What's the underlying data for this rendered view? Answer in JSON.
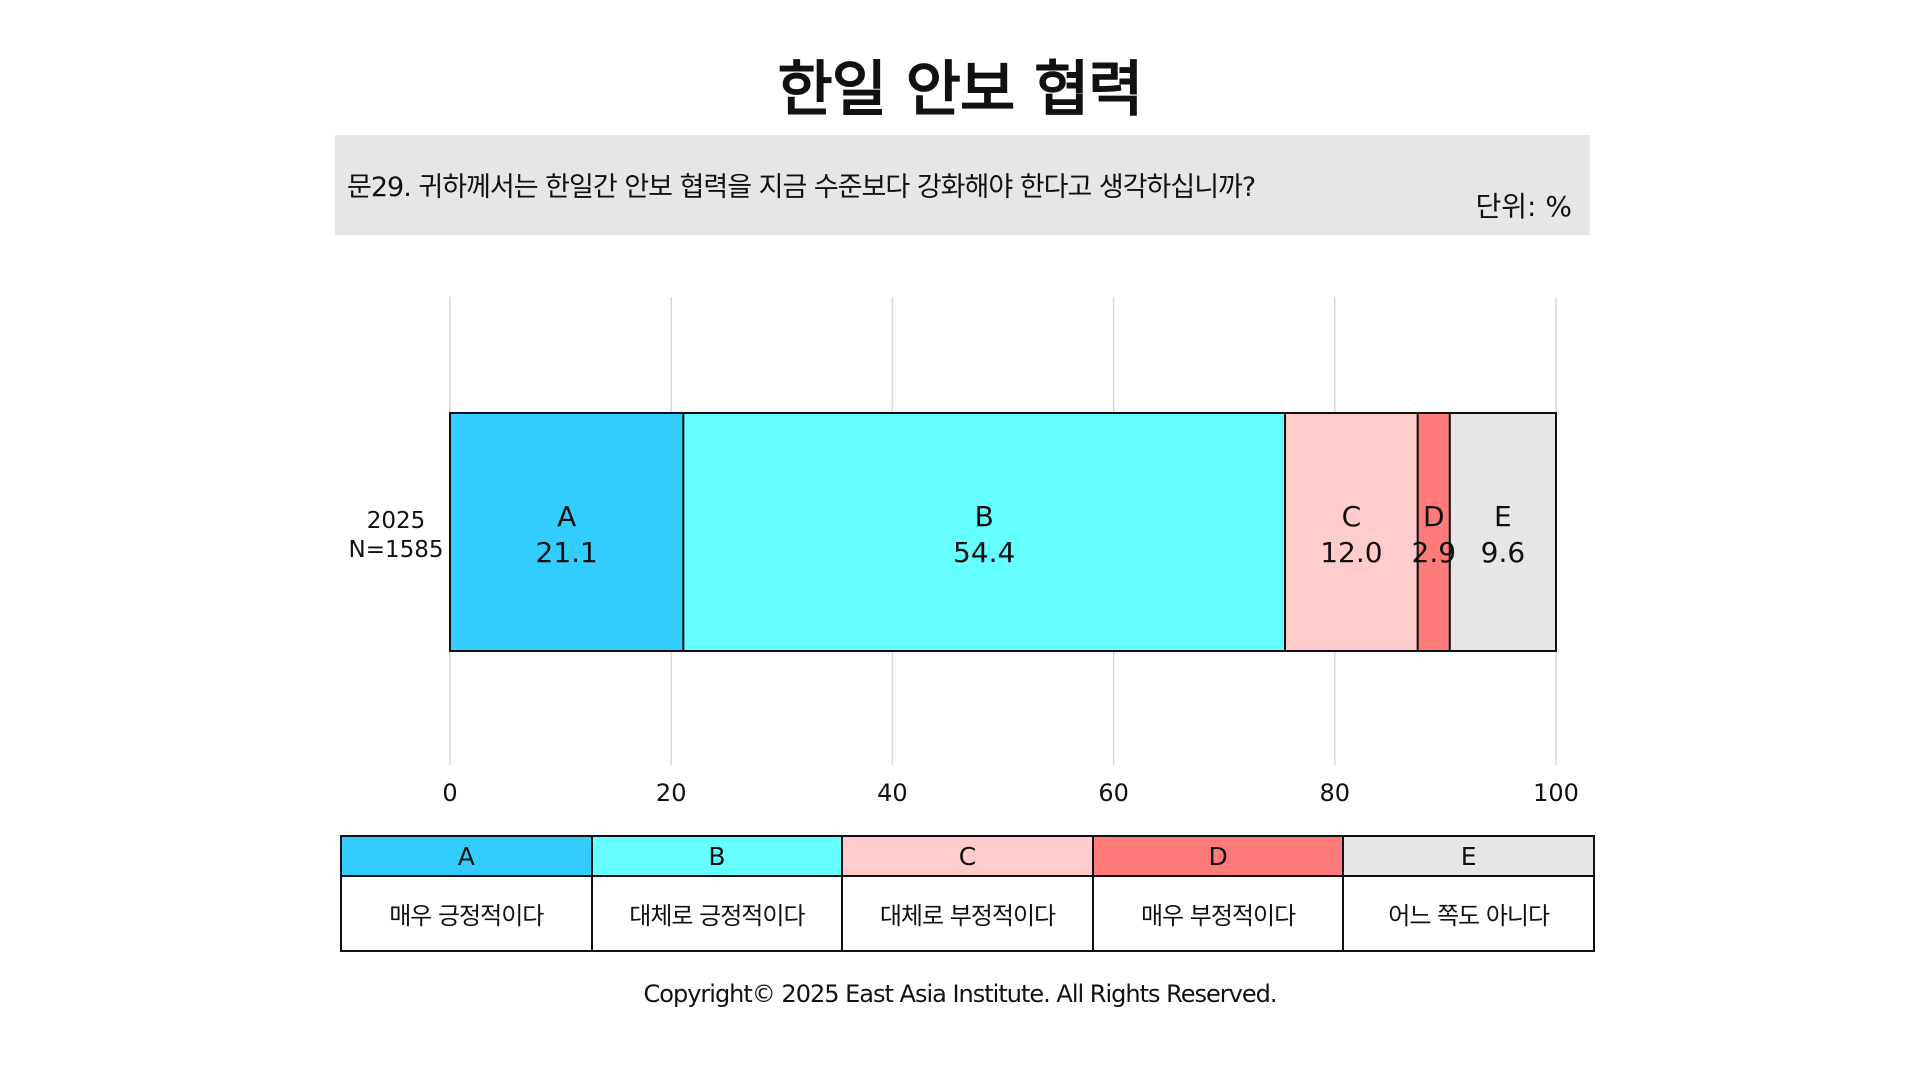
{
  "page": {
    "title": "한일 안보 협력",
    "question": "문29. 귀하께서는 한일간 안보 협력을 지금 수준보다 강화해야 한다고 생각하십니까?",
    "unit": "단위: %",
    "copyright": "Copyright© 2025 East Asia Institute. All Rights Reserved."
  },
  "chart_data": {
    "type": "bar",
    "orientation": "horizontal",
    "stacked": true,
    "title": "한일 안보 협력",
    "categories": [
      "2025\nN=1585"
    ],
    "category_lines": [
      [
        "2025",
        "N=1585"
      ]
    ],
    "series": [
      {
        "name": "A",
        "label": "매우 긍정적이다",
        "color": "#33ccff",
        "values": [
          21.1
        ],
        "value_labels": [
          "21.1"
        ]
      },
      {
        "name": "B",
        "label": "대체로 긍정적이다",
        "color": "#66ffff",
        "values": [
          54.4
        ],
        "value_labels": [
          "54.4"
        ]
      },
      {
        "name": "C",
        "label": "대체로 부정적이다",
        "color": "#ffcccc",
        "values": [
          12.0
        ],
        "value_labels": [
          "12.0"
        ]
      },
      {
        "name": "D",
        "label": "매우 부정적이다",
        "color": "#ff7b7b",
        "values": [
          2.9
        ],
        "value_labels": [
          "2.9"
        ]
      },
      {
        "name": "E",
        "label": "어느 쪽도 아니다",
        "color": "#e6e6e6",
        "values": [
          9.6
        ],
        "value_labels": [
          "9.6"
        ]
      }
    ],
    "xlim": [
      0,
      100
    ],
    "xticks": [
      0,
      20,
      40,
      60,
      80,
      100
    ],
    "xtick_labels": [
      "0",
      "20",
      "40",
      "60",
      "80",
      "100"
    ],
    "grid": "vertical",
    "legend": "bottom"
  }
}
